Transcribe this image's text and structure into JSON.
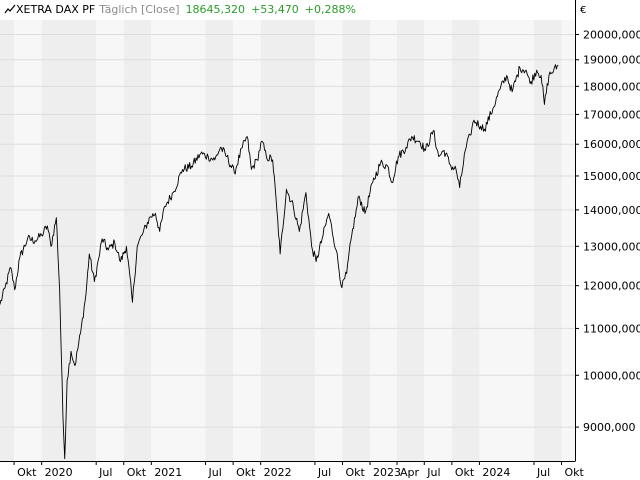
{
  "header": {
    "symbol": "XETRA DAX PF",
    "period": "Täglich [Close]",
    "last": "18645,320",
    "change": "+53,470",
    "change_pct": "+0,288%"
  },
  "currency": "€",
  "colors": {
    "line": "#000000",
    "positive": "#2a9d2a",
    "band_dark": "#eeeeee",
    "band_light": "#f7f7f7",
    "grid": "#dddddd"
  },
  "chart_data": {
    "type": "line",
    "scale": "log",
    "ylim": [
      8400,
      20600
    ],
    "y_ticks": [
      9000,
      10000,
      11000,
      12000,
      13000,
      14000,
      15000,
      16000,
      17000,
      18000,
      19000,
      20000
    ],
    "y_tick_labels": [
      "9000,000",
      "10000,000",
      "11000,000",
      "12000,000",
      "13000,000",
      "14000,000",
      "15000,000",
      "16000,000",
      "17000,000",
      "18000,000",
      "19000,000",
      "20000,000"
    ],
    "x_range": [
      "2019-08-15",
      "2024-11-15"
    ],
    "x_ticks": [
      {
        "date": "2019-10-01",
        "label": "Okt"
      },
      {
        "date": "2020-01-01",
        "label": "2020"
      },
      {
        "date": "2020-07-01",
        "label": "Jul"
      },
      {
        "date": "2020-10-01",
        "label": "Okt"
      },
      {
        "date": "2021-01-01",
        "label": "2021"
      },
      {
        "date": "2021-07-01",
        "label": "Jul"
      },
      {
        "date": "2021-10-01",
        "label": "Okt"
      },
      {
        "date": "2022-01-01",
        "label": "2022"
      },
      {
        "date": "2022-07-01",
        "label": "Jul"
      },
      {
        "date": "2022-10-01",
        "label": "Okt"
      },
      {
        "date": "2023-01-01",
        "label": "2023"
      },
      {
        "date": "2023-04-01",
        "label": "Apr"
      },
      {
        "date": "2023-07-01",
        "label": "Jul"
      },
      {
        "date": "2023-10-01",
        "label": "Okt"
      },
      {
        "date": "2024-01-01",
        "label": "2024"
      },
      {
        "date": "2024-07-01",
        "label": "Jul"
      },
      {
        "date": "2024-10-01",
        "label": "Okt"
      }
    ],
    "series": [
      {
        "points": [
          [
            "2019-08-15",
            11550
          ],
          [
            "2019-09-01",
            11950
          ],
          [
            "2019-09-20",
            12450
          ],
          [
            "2019-10-03",
            11900
          ],
          [
            "2019-10-20",
            12700
          ],
          [
            "2019-11-15",
            13200
          ],
          [
            "2019-12-10",
            13150
          ],
          [
            "2020-01-01",
            13300
          ],
          [
            "2020-01-20",
            13550
          ],
          [
            "2020-02-01",
            13000
          ],
          [
            "2020-02-19",
            13780
          ],
          [
            "2020-03-01",
            11900
          ],
          [
            "2020-03-12",
            9200
          ],
          [
            "2020-03-18",
            8440
          ],
          [
            "2020-03-26",
            9900
          ],
          [
            "2020-04-08",
            10500
          ],
          [
            "2020-04-21",
            10200
          ],
          [
            "2020-05-10",
            10900
          ],
          [
            "2020-05-28",
            11800
          ],
          [
            "2020-06-08",
            12800
          ],
          [
            "2020-06-25",
            12100
          ],
          [
            "2020-07-10",
            12700
          ],
          [
            "2020-07-21",
            13200
          ],
          [
            "2020-08-10",
            12900
          ],
          [
            "2020-09-01",
            13100
          ],
          [
            "2020-09-20",
            12600
          ],
          [
            "2020-10-10",
            13000
          ],
          [
            "2020-10-30",
            11600
          ],
          [
            "2020-11-15",
            13000
          ],
          [
            "2020-12-01",
            13300
          ],
          [
            "2020-12-28",
            13800
          ],
          [
            "2021-01-15",
            13900
          ],
          [
            "2021-01-29",
            13400
          ],
          [
            "2021-02-15",
            14100
          ],
          [
            "2021-03-15",
            14500
          ],
          [
            "2021-04-15",
            15200
          ],
          [
            "2021-05-15",
            15300
          ],
          [
            "2021-06-15",
            15700
          ],
          [
            "2021-07-10",
            15600
          ],
          [
            "2021-08-01",
            15500
          ],
          [
            "2021-08-20",
            15900
          ],
          [
            "2021-09-10",
            15600
          ],
          [
            "2021-10-05",
            15100
          ],
          [
            "2021-11-01",
            15900
          ],
          [
            "2021-11-17",
            16250
          ],
          [
            "2021-12-01",
            15200
          ],
          [
            "2021-12-20",
            15500
          ],
          [
            "2022-01-05",
            16100
          ],
          [
            "2022-01-20",
            15600
          ],
          [
            "2022-02-10",
            15500
          ],
          [
            "2022-02-24",
            14000
          ],
          [
            "2022-03-07",
            12800
          ],
          [
            "2022-03-28",
            14600
          ],
          [
            "2022-04-20",
            14100
          ],
          [
            "2022-05-10",
            13400
          ],
          [
            "2022-06-01",
            14500
          ],
          [
            "2022-06-20",
            13000
          ],
          [
            "2022-07-05",
            12600
          ],
          [
            "2022-07-25",
            13200
          ],
          [
            "2022-08-16",
            13900
          ],
          [
            "2022-09-10",
            12900
          ],
          [
            "2022-09-29",
            11950
          ],
          [
            "2022-10-15",
            12300
          ],
          [
            "2022-11-01",
            13300
          ],
          [
            "2022-11-25",
            14400
          ],
          [
            "2022-12-15",
            13900
          ],
          [
            "2023-01-10",
            14800
          ],
          [
            "2023-02-05",
            15400
          ],
          [
            "2023-03-01",
            15300
          ],
          [
            "2023-03-15",
            14800
          ],
          [
            "2023-04-05",
            15600
          ],
          [
            "2023-05-01",
            15900
          ],
          [
            "2023-05-20",
            16250
          ],
          [
            "2023-06-15",
            16100
          ],
          [
            "2023-07-05",
            15800
          ],
          [
            "2023-07-31",
            16450
          ],
          [
            "2023-08-18",
            15600
          ],
          [
            "2023-09-05",
            15800
          ],
          [
            "2023-09-28",
            15300
          ],
          [
            "2023-10-15",
            15200
          ],
          [
            "2023-10-27",
            14650
          ],
          [
            "2023-11-15",
            15800
          ],
          [
            "2023-12-01",
            16300
          ],
          [
            "2023-12-14",
            16800
          ],
          [
            "2024-01-05",
            16600
          ],
          [
            "2024-01-18",
            16500
          ],
          [
            "2024-02-15",
            17200
          ],
          [
            "2024-03-10",
            17900
          ],
          [
            "2024-04-01",
            18400
          ],
          [
            "2024-04-19",
            17800
          ],
          [
            "2024-05-15",
            18700
          ],
          [
            "2024-06-05",
            18600
          ],
          [
            "2024-06-18",
            18100
          ],
          [
            "2024-07-10",
            18600
          ],
          [
            "2024-07-25",
            18400
          ],
          [
            "2024-08-05",
            17350
          ],
          [
            "2024-08-20",
            18400
          ],
          [
            "2024-09-05",
            18600
          ],
          [
            "2024-09-20",
            18780
          ]
        ]
      }
    ]
  }
}
